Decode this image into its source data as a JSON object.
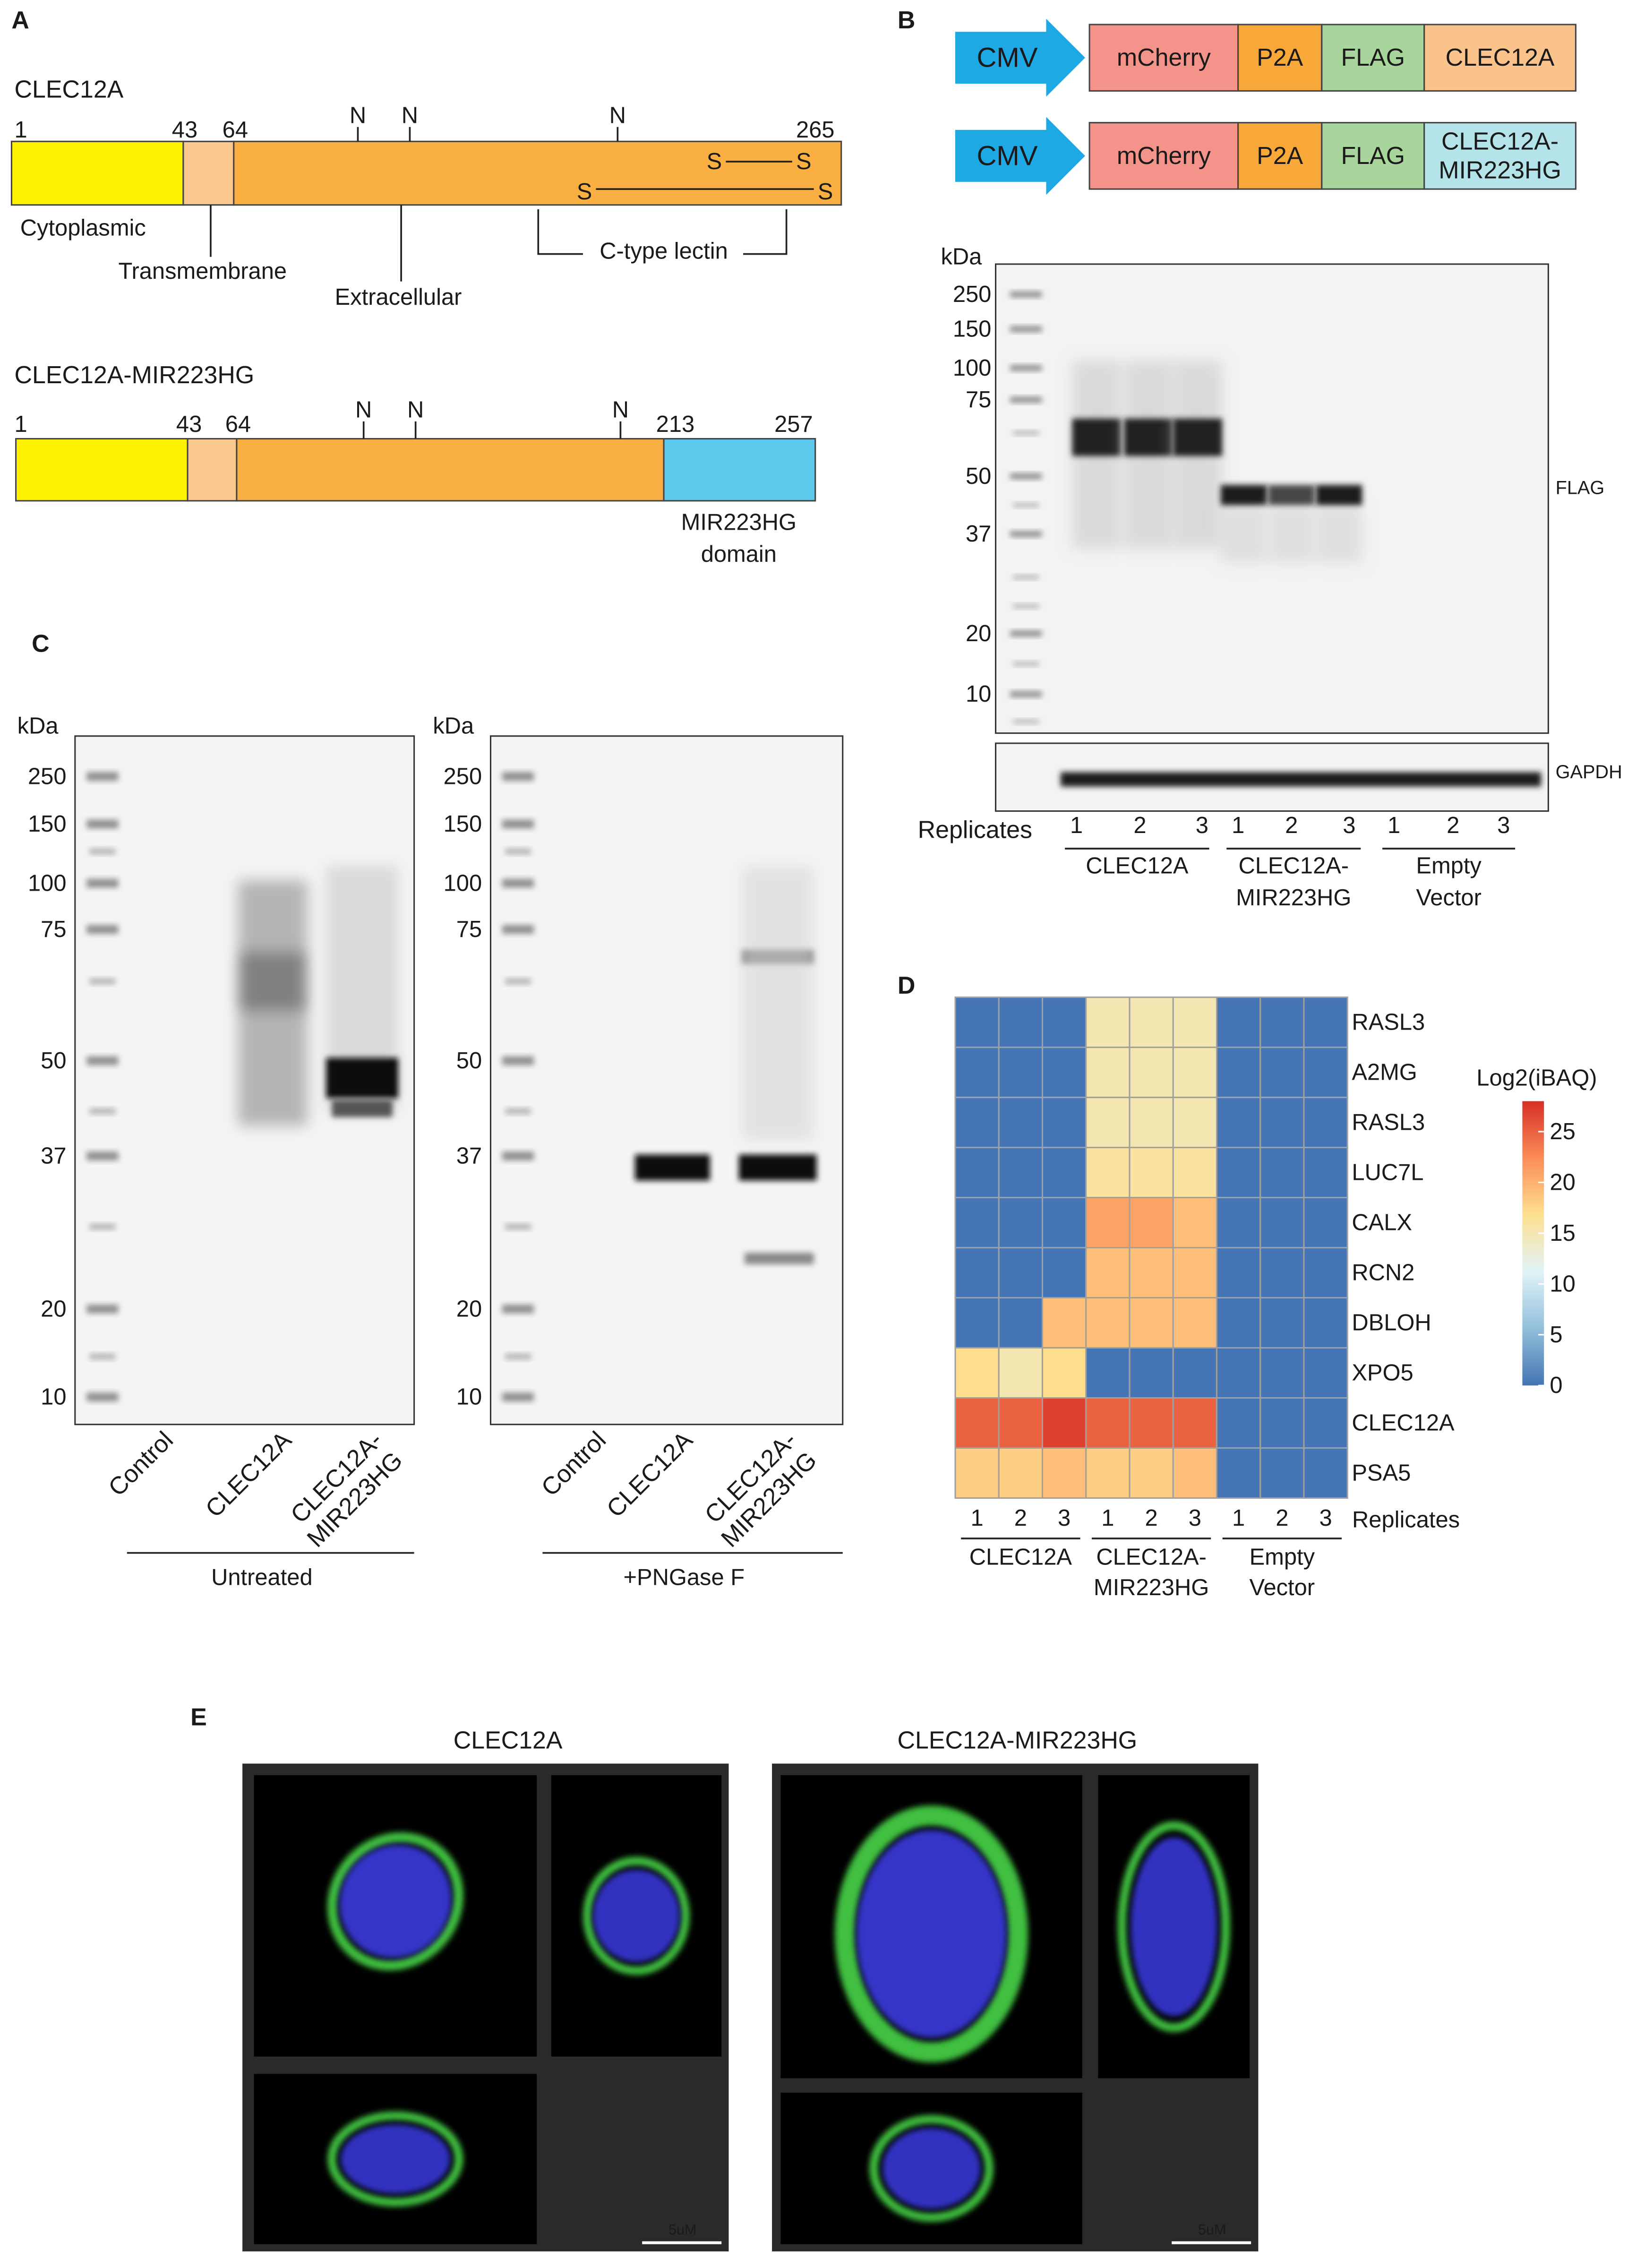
{
  "a": {
    "label": "A",
    "constructs": [
      {
        "name": "CLEC12A",
        "positions": [
          1,
          43,
          64,
          265
        ]
      },
      {
        "name": "CLEC12A-MIR223HG",
        "positions": [
          1,
          43,
          64,
          213,
          257
        ],
        "domain_label": [
          "MIR223HG",
          "domain"
        ]
      }
    ],
    "site_label": "N",
    "bond_label": "S",
    "regions": [
      "Cytoplasmic",
      "Transmembrane",
      "Extracellular",
      "C-type lectin"
    ]
  },
  "b": {
    "label": "B",
    "constructs": [
      {
        "promoter": "CMV",
        "parts": [
          [
            "mCherry"
          ],
          [
            "P2A"
          ],
          [
            "FLAG"
          ],
          [
            "CLEC12A"
          ]
        ]
      },
      {
        "promoter": "CMV",
        "parts": [
          [
            "mCherry"
          ],
          [
            "P2A"
          ],
          [
            "FLAG"
          ],
          [
            "CLEC12A-",
            "MIR223HG"
          ]
        ]
      }
    ],
    "blot": {
      "unit": "kDa",
      "markers": [
        250,
        150,
        100,
        75,
        50,
        37,
        20,
        10
      ],
      "probe": "FLAG",
      "loading_control": "GAPDH",
      "replicates_label": "Replicates",
      "replicates": [
        1,
        2,
        3
      ],
      "groups": [
        [
          "CLEC12A"
        ],
        [
          "CLEC12A-",
          "MIR223HG"
        ],
        [
          "Empty",
          "Vector"
        ]
      ]
    }
  },
  "c": {
    "label": "C",
    "blots": [
      {
        "unit": "kDa",
        "markers": [
          250,
          150,
          100,
          75,
          50,
          37,
          20,
          10
        ],
        "lanes": [
          [
            "Control"
          ],
          [
            "CLEC12A"
          ],
          [
            "CLEC12A-",
            "MIR223HG"
          ]
        ],
        "treatment": "Untreated"
      },
      {
        "unit": "kDa",
        "markers": [
          250,
          150,
          100,
          75,
          50,
          37,
          20,
          10
        ],
        "lanes": [
          [
            "Control"
          ],
          [
            "CLEC12A"
          ],
          [
            "CLEC12A-",
            "MIR223HG"
          ]
        ],
        "treatment": "+PNGase F"
      }
    ]
  },
  "d": {
    "label": "D",
    "chart_data": {
      "type": "heatmap",
      "rows": [
        "RASL3",
        "A2MG",
        "RASL3",
        "LUC7L",
        "CALX",
        "RCN2",
        "DBLOH",
        "XPO5",
        "CLEC12A",
        "PSA5"
      ],
      "replicates": [
        1,
        2,
        3
      ],
      "replicates_label": "Replicates",
      "groups": [
        [
          "CLEC12A"
        ],
        [
          "CLEC12A-",
          "MIR223HG"
        ],
        [
          "Empty",
          "Vector"
        ]
      ],
      "values": [
        [
          0,
          0,
          0,
          15,
          15,
          15,
          0,
          0,
          0
        ],
        [
          0,
          0,
          0,
          15,
          15,
          15,
          0,
          0,
          0
        ],
        [
          0,
          0,
          0,
          15,
          15,
          15,
          0,
          0,
          0
        ],
        [
          0,
          0,
          0,
          16,
          16,
          16,
          0,
          0,
          0
        ],
        [
          0,
          0,
          0,
          21,
          21,
          19,
          0,
          0,
          0
        ],
        [
          0,
          0,
          0,
          19,
          19,
          19,
          0,
          0,
          0
        ],
        [
          0,
          0,
          19,
          19,
          19,
          19,
          0,
          0,
          0
        ],
        [
          17,
          15,
          17,
          0,
          0,
          0,
          0,
          0,
          0
        ],
        [
          25,
          25,
          27,
          25,
          25,
          25,
          0,
          0,
          0
        ],
        [
          18,
          18,
          19,
          18,
          18,
          19,
          0,
          0,
          0
        ]
      ],
      "colorbar_title": "Log2(iBAQ)",
      "clim": [
        0,
        28
      ],
      "cticks": [
        0,
        5,
        10,
        15,
        20,
        25
      ],
      "colors": [
        "#4575b4",
        "#91bfdb",
        "#e0f3f8",
        "#fee090",
        "#fc8d59",
        "#d73027"
      ]
    }
  },
  "e": {
    "label": "E",
    "images": [
      {
        "title": "CLEC12A",
        "scale_bar": "5uM"
      },
      {
        "title": "CLEC12A-MIR223HG",
        "scale_bar": "5uM"
      }
    ]
  }
}
